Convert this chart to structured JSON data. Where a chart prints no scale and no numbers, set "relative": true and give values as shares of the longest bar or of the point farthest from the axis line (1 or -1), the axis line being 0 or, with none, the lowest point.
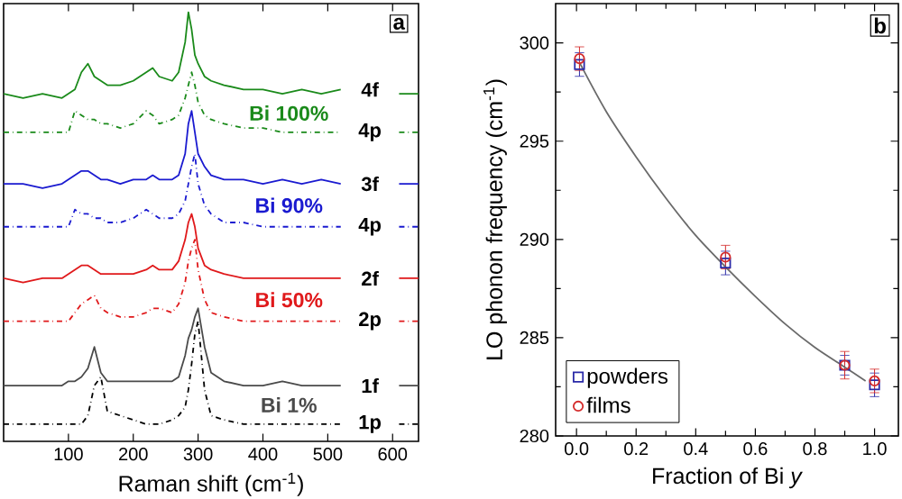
{
  "chart_data": [
    {
      "type": "line",
      "xlabel": "Raman shift (cm$^{-1}$)",
      "relative": true,
      "xlim": [
        0,
        640
      ],
      "xticks": [
        100,
        200,
        300,
        400,
        500,
        600
      ],
      "tick_labels": "x",
      "x": [
        0,
        30,
        60,
        90,
        100,
        110,
        120,
        130,
        140,
        150,
        160,
        180,
        200,
        220,
        230,
        240,
        260,
        270,
        280,
        285,
        290,
        295,
        300,
        310,
        320,
        340,
        370,
        400,
        430,
        460,
        490,
        520,
        550,
        580,
        610,
        640
      ],
      "annotations": [
        "a",
        "Bi 100%",
        "Bi 90%",
        "Bi 50%",
        "Bi 1%"
      ],
      "series": [
        {
          "name": "4f",
          "color": "#1a8a1a",
          "line_style": "solid",
          "values": [
            0.81,
            0.8,
            0.81,
            0.8,
            0.81,
            0.82,
            0.86,
            0.88,
            0.85,
            0.84,
            0.83,
            0.83,
            0.84,
            0.86,
            0.87,
            0.85,
            0.84,
            0.86,
            0.93,
            1.0,
            0.96,
            0.9,
            0.88,
            0.85,
            0.84,
            0.83,
            0.82,
            0.82,
            0.81,
            0.82,
            0.81,
            0.82,
            null,
            null,
            0.81,
            0.81
          ]
        },
        {
          "name": "4p",
          "color": "#1a8a1a",
          "line_style": "dashdot",
          "values": [
            0.72,
            0.72,
            0.72,
            0.72,
            0.72,
            0.77,
            0.76,
            0.75,
            0.75,
            0.74,
            0.74,
            0.73,
            0.74,
            0.77,
            0.76,
            0.74,
            0.75,
            0.76,
            0.8,
            0.83,
            0.86,
            0.83,
            0.79,
            0.76,
            0.75,
            0.74,
            0.73,
            0.73,
            0.72,
            0.72,
            0.72,
            0.72,
            null,
            null,
            0.72,
            0.72
          ]
        },
        {
          "name": "3f",
          "color": "#1a1ad0",
          "line_style": "solid",
          "values": [
            0.6,
            0.6,
            0.59,
            0.6,
            0.61,
            0.62,
            0.63,
            0.63,
            0.62,
            0.61,
            0.61,
            0.6,
            0.61,
            0.61,
            0.62,
            0.61,
            0.61,
            0.62,
            0.67,
            0.74,
            0.77,
            0.72,
            0.67,
            0.64,
            0.62,
            0.61,
            0.61,
            0.6,
            0.61,
            0.6,
            0.61,
            0.6,
            null,
            null,
            0.6,
            0.6
          ]
        },
        {
          "name": "4p",
          "color": "#1a1ad0",
          "line_style": "dashdot",
          "values": [
            0.5,
            0.5,
            0.5,
            0.5,
            0.5,
            0.54,
            0.53,
            0.53,
            0.52,
            0.52,
            0.51,
            0.51,
            0.52,
            0.54,
            0.53,
            0.52,
            0.52,
            0.53,
            0.56,
            0.6,
            0.64,
            0.67,
            0.6,
            0.55,
            0.53,
            0.51,
            0.51,
            0.5,
            0.5,
            0.5,
            0.5,
            0.5,
            null,
            null,
            0.5,
            0.5
          ]
        },
        {
          "name": "2f",
          "color": "#e0191b",
          "line_style": "solid",
          "values": [
            0.38,
            0.37,
            0.38,
            0.38,
            0.39,
            0.4,
            0.41,
            0.41,
            0.4,
            0.39,
            0.39,
            0.39,
            0.39,
            0.4,
            0.41,
            0.4,
            0.4,
            0.42,
            0.47,
            0.51,
            0.53,
            0.5,
            0.45,
            0.41,
            0.4,
            0.39,
            0.38,
            0.38,
            0.38,
            0.38,
            0.38,
            0.38,
            null,
            null,
            0.38,
            0.38
          ]
        },
        {
          "name": "2p",
          "color": "#e0191b",
          "line_style": "dashdot",
          "values": [
            0.28,
            0.28,
            0.28,
            0.28,
            0.28,
            0.3,
            0.32,
            0.33,
            0.34,
            0.31,
            0.3,
            0.29,
            0.29,
            0.3,
            0.31,
            0.31,
            0.3,
            0.32,
            0.37,
            0.42,
            0.45,
            0.47,
            0.4,
            0.33,
            0.3,
            0.29,
            0.28,
            0.28,
            0.28,
            0.28,
            0.28,
            0.28,
            null,
            null,
            0.28,
            0.28
          ]
        },
        {
          "name": "1f",
          "color": "#4a4a4a",
          "line_style": "solid",
          "values": [
            0.13,
            0.13,
            0.13,
            0.13,
            0.14,
            0.14,
            0.15,
            0.17,
            0.22,
            0.16,
            0.14,
            0.14,
            0.14,
            0.14,
            0.14,
            0.14,
            0.14,
            0.15,
            0.2,
            0.24,
            0.26,
            0.29,
            0.31,
            0.22,
            0.16,
            0.14,
            0.13,
            0.13,
            0.14,
            0.13,
            0.13,
            0.13,
            null,
            null,
            0.13,
            0.13
          ]
        },
        {
          "name": "1p",
          "color": "#000000",
          "line_style": "dashdot",
          "values": [
            0.04,
            0.04,
            0.04,
            0.04,
            0.04,
            0.04,
            0.04,
            0.06,
            0.13,
            0.15,
            0.07,
            0.06,
            0.05,
            0.04,
            0.04,
            0.04,
            0.05,
            0.06,
            0.08,
            0.12,
            0.18,
            0.25,
            0.28,
            0.12,
            0.06,
            0.05,
            0.04,
            0.04,
            0.04,
            0.04,
            0.04,
            0.04,
            null,
            null,
            0.04,
            0.04
          ]
        }
      ]
    },
    {
      "type": "scatter",
      "xlabel": "Fraction of Bi *y*",
      "ylabel": "LO phonon frequency (cm$^{-1}$)",
      "xlim": [
        -0.07,
        1.08
      ],
      "ylim": [
        280,
        302
      ],
      "xticks": [
        {
          "value": 0,
          "label": "0.0"
        },
        0.2,
        0.4,
        0.6,
        0.8,
        {
          "value": 1,
          "label": "1.0"
        }
      ],
      "yticks": [
        280,
        285,
        290,
        295,
        300
      ],
      "legend": "bottom left",
      "annotations": [
        "b"
      ],
      "x": [
        0.01,
        0.5,
        0.9,
        1.0
      ],
      "series": [
        {
          "name": "powders",
          "color": "#2a2aa8",
          "marker": "square",
          "values": [
            298.9,
            288.8,
            283.6,
            282.6
          ],
          "errors": [
            0.6,
            0.6,
            0.5,
            0.6
          ]
        },
        {
          "name": "films",
          "color": "#d42a2a",
          "marker": "circle",
          "values": [
            299.2,
            289.1,
            283.6,
            282.8
          ],
          "errors": [
            0.6,
            0.6,
            0.7,
            0.6
          ]
        },
        {
          "type": "line",
          "color": "#6a6a6a",
          "x": [
            0.01,
            0.1,
            0.2,
            0.3,
            0.4,
            0.5,
            0.6,
            0.7,
            0.8,
            0.9,
            0.97
          ],
          "values": [
            299.0,
            296.5,
            294.2,
            292.1,
            290.2,
            288.6,
            287.1,
            285.7,
            284.5,
            283.5,
            282.8
          ]
        }
      ]
    }
  ]
}
